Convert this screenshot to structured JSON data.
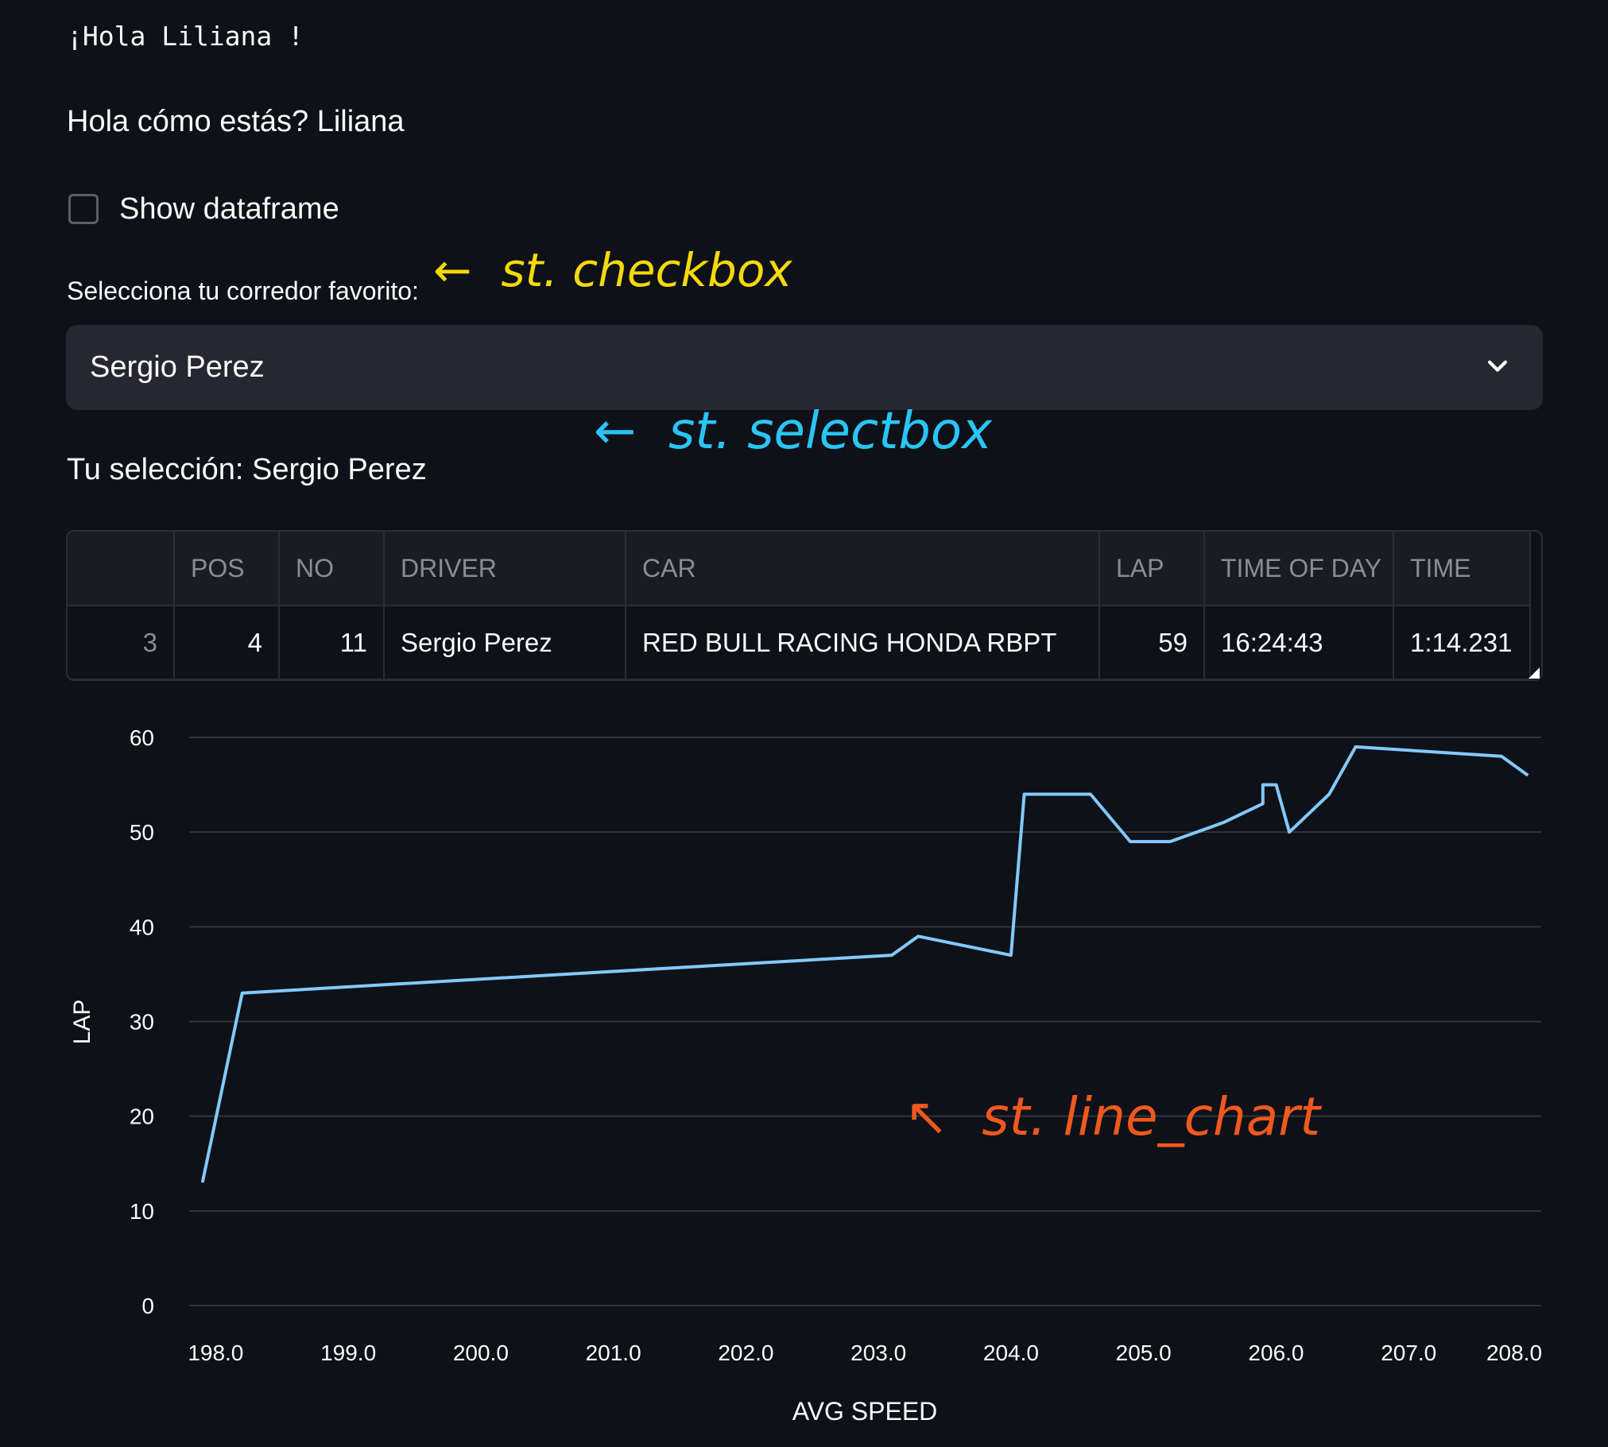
{
  "greeting_mono": "¡Hola Liliana !",
  "greeting": "Hola cómo estás? Liliana",
  "checkbox": {
    "label": "Show dataframe",
    "checked": false
  },
  "selectbox": {
    "label": "Selecciona tu corredor favorito:",
    "value": "Sergio Perez",
    "icon": "chevron-down-icon"
  },
  "selection_text": "Tu selección: Sergio Perez",
  "dataframe": {
    "columns": [
      "",
      "POS",
      "NO",
      "DRIVER",
      "CAR",
      "LAP",
      "TIME OF DAY",
      "TIME"
    ],
    "rows": [
      [
        "3",
        "4",
        "11",
        "Sergio Perez",
        "RED BULL RACING HONDA RBPT",
        "59",
        "16:24:43",
        "1:14.231"
      ]
    ]
  },
  "annotations": {
    "checkbox": {
      "arrow": "←",
      "text": "st. checkbox",
      "color": "#f5d90a"
    },
    "selectbox": {
      "arrow": "←",
      "text": "st. selectbox",
      "color": "#29c5f6"
    },
    "line_chart": {
      "arrow": "↖",
      "text": "st. line_chart",
      "color": "#f0581e"
    }
  },
  "chart_data": {
    "type": "line",
    "xlabel": "AVG SPEED",
    "ylabel": "LAP",
    "xlim": [
      197.8,
      208.0
    ],
    "ylim": [
      0,
      60
    ],
    "x_ticks": [
      "198.0",
      "199.0",
      "200.0",
      "201.0",
      "202.0",
      "203.0",
      "204.0",
      "205.0",
      "206.0",
      "207.0",
      "208.0"
    ],
    "y_ticks": [
      "0",
      "10",
      "20",
      "30",
      "40",
      "50",
      "60"
    ],
    "grid": true,
    "color": "#83c9ff",
    "series": [
      {
        "x": [
          197.9,
          198.2,
          203.1,
          203.3,
          204.0,
          204.1,
          204.6,
          204.9,
          205.2,
          205.6,
          205.9,
          205.9,
          206.0,
          206.1,
          206.4,
          206.6,
          207.7,
          207.9
        ],
        "y": [
          13,
          33,
          37,
          39,
          37,
          54,
          54,
          49,
          49,
          51,
          53,
          55,
          55,
          50,
          54,
          59,
          58,
          56
        ]
      }
    ]
  }
}
